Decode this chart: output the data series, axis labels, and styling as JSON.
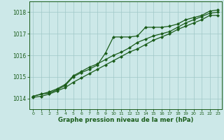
{
  "x": [
    0,
    1,
    2,
    3,
    4,
    5,
    6,
    7,
    8,
    9,
    10,
    11,
    12,
    13,
    14,
    15,
    16,
    17,
    18,
    19,
    20,
    21,
    22,
    23
  ],
  "line1": [
    1014.1,
    1014.2,
    1014.25,
    1014.4,
    1014.6,
    1015.0,
    1015.2,
    1015.35,
    1015.55,
    1016.1,
    1016.85,
    1016.85,
    1016.85,
    1016.9,
    1017.3,
    1017.3,
    1017.3,
    1017.35,
    1017.45,
    1017.65,
    1017.75,
    1017.85,
    1018.05,
    1018.1
  ],
  "line2": [
    1014.1,
    1014.2,
    1014.3,
    1014.45,
    1014.65,
    1015.05,
    1015.25,
    1015.45,
    1015.6,
    1015.8,
    1016.0,
    1016.15,
    1016.35,
    1016.6,
    1016.75,
    1016.9,
    1017.0,
    1017.1,
    1017.3,
    1017.5,
    1017.65,
    1017.8,
    1017.95,
    1018.0
  ],
  "line3": [
    1014.05,
    1014.1,
    1014.2,
    1014.35,
    1014.5,
    1014.75,
    1014.95,
    1015.15,
    1015.35,
    1015.55,
    1015.75,
    1015.95,
    1016.15,
    1016.3,
    1016.5,
    1016.7,
    1016.85,
    1017.0,
    1017.2,
    1017.35,
    1017.5,
    1017.65,
    1017.85,
    1017.85
  ],
  "ylim": [
    1013.5,
    1018.5
  ],
  "xlim": [
    -0.5,
    23.5
  ],
  "yticks": [
    1014,
    1015,
    1016,
    1017,
    1018
  ],
  "xticks": [
    0,
    1,
    2,
    3,
    4,
    5,
    6,
    7,
    8,
    9,
    10,
    11,
    12,
    13,
    14,
    15,
    16,
    17,
    18,
    19,
    20,
    21,
    22,
    23
  ],
  "xlabel": "Graphe pression niveau de la mer (hPa)",
  "line_color": "#1a5c1a",
  "bg_color": "#cce8e8",
  "grid_color": "#a0c8c8",
  "marker": "D",
  "markersize": 2.0,
  "linewidth": 0.9,
  "ytick_fontsize": 5.5,
  "xtick_fontsize": 4.5,
  "xlabel_fontsize": 6.2
}
